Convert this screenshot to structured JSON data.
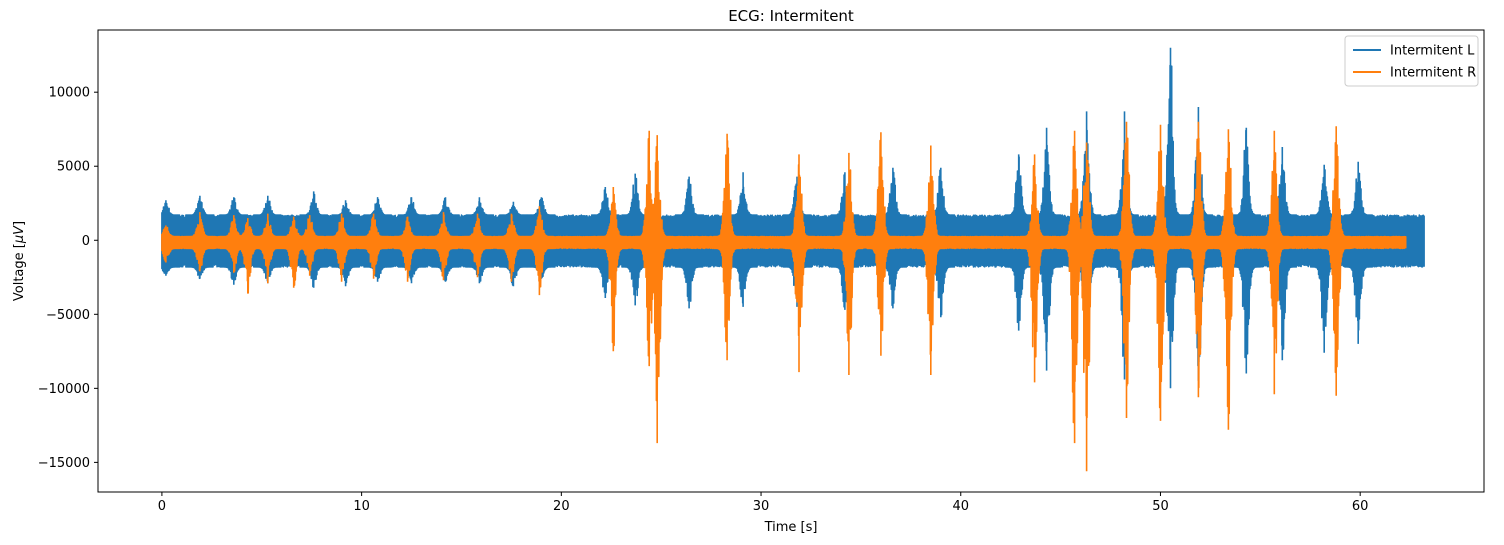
{
  "chart_data": {
    "type": "line",
    "title": "ECG: Intermitent",
    "xlabel": "Time [s]",
    "ylabel_prefix": "Voltage [",
    "ylabel_unit": "μV",
    "ylabel_suffix": "]",
    "xlim": [
      -3.2,
      66.2
    ],
    "ylim": [
      -17000,
      14200
    ],
    "xticks": [
      0,
      10,
      20,
      30,
      40,
      50,
      60
    ],
    "xtick_labels": [
      "0",
      "10",
      "20",
      "30",
      "40",
      "50",
      "60"
    ],
    "yticks": [
      10000,
      5000,
      0,
      -5000,
      -10000,
      -15000
    ],
    "ytick_labels": [
      "10000",
      "5000",
      "0",
      "−5000",
      "−10000",
      "−15000"
    ],
    "legend_position": "top-right",
    "grid": false,
    "series": [
      {
        "name": "Intermitent L",
        "color": "#1f77b4",
        "x_end": 63.2,
        "baseline_upper": 1700,
        "baseline_lower": -1800,
        "bursts": [
          {
            "t": 0.2,
            "max": 2700,
            "min": -2400
          },
          {
            "t": 1.9,
            "max": 3000,
            "min": -2600
          },
          {
            "t": 3.6,
            "max": 2900,
            "min": -3000
          },
          {
            "t": 5.3,
            "max": 3000,
            "min": -2900
          },
          {
            "t": 7.6,
            "max": 3300,
            "min": -3200
          },
          {
            "t": 9.2,
            "max": 2700,
            "min": -3100
          },
          {
            "t": 10.8,
            "max": 2900,
            "min": -2800
          },
          {
            "t": 12.5,
            "max": 2900,
            "min": -2900
          },
          {
            "t": 14.2,
            "max": 2900,
            "min": -2800
          },
          {
            "t": 15.9,
            "max": 2900,
            "min": -2900
          },
          {
            "t": 17.6,
            "max": 2600,
            "min": -3100
          },
          {
            "t": 19.0,
            "max": 2900,
            "min": -2600
          },
          {
            "t": 22.2,
            "max": 3600,
            "min": -3900
          },
          {
            "t": 23.7,
            "max": 4500,
            "min": -4400
          },
          {
            "t": 26.4,
            "max": 4300,
            "min": -4600
          },
          {
            "t": 29.1,
            "max": 4600,
            "min": -4500
          },
          {
            "t": 31.8,
            "max": 4300,
            "min": -4500
          },
          {
            "t": 34.2,
            "max": 4600,
            "min": -4700
          },
          {
            "t": 36.6,
            "max": 4900,
            "min": -4600
          },
          {
            "t": 39.0,
            "max": 4900,
            "min": -5200
          },
          {
            "t": 42.9,
            "max": 5800,
            "min": -6100
          },
          {
            "t": 44.3,
            "max": 7600,
            "min": -8800
          },
          {
            "t": 46.3,
            "max": 8700,
            "min": -9300
          },
          {
            "t": 48.2,
            "max": 8700,
            "min": -9400
          },
          {
            "t": 50.5,
            "max": 13000,
            "min": -10000
          },
          {
            "t": 51.9,
            "max": 9000,
            "min": -9500
          },
          {
            "t": 54.3,
            "max": 7600,
            "min": -9000
          },
          {
            "t": 56.1,
            "max": 6300,
            "min": -8100
          },
          {
            "t": 58.2,
            "max": 5100,
            "min": -7600
          },
          {
            "t": 59.9,
            "max": 5300,
            "min": -7000
          }
        ]
      },
      {
        "name": "Intermitent R",
        "color": "#ff7f0e",
        "x_end": 62.3,
        "baseline_upper": 250,
        "baseline_lower": -550,
        "bursts": [
          {
            "t": 0.2,
            "max": 1000,
            "min": -1500
          },
          {
            "t": 1.9,
            "max": 1900,
            "min": -2100
          },
          {
            "t": 3.6,
            "max": 1700,
            "min": -2200
          },
          {
            "t": 4.3,
            "max": 1500,
            "min": -3600
          },
          {
            "t": 5.3,
            "max": 1800,
            "min": -2900
          },
          {
            "t": 6.6,
            "max": 1600,
            "min": -3200
          },
          {
            "t": 7.4,
            "max": 1700,
            "min": -2400
          },
          {
            "t": 9.0,
            "max": 1800,
            "min": -2800
          },
          {
            "t": 10.6,
            "max": 1800,
            "min": -2600
          },
          {
            "t": 12.3,
            "max": 1600,
            "min": -2800
          },
          {
            "t": 14.1,
            "max": 1900,
            "min": -2700
          },
          {
            "t": 15.8,
            "max": 1800,
            "min": -2500
          },
          {
            "t": 17.5,
            "max": 1800,
            "min": -2800
          },
          {
            "t": 18.9,
            "max": 2300,
            "min": -3700
          },
          {
            "t": 22.6,
            "max": 3600,
            "min": -7500
          },
          {
            "t": 24.4,
            "max": 7400,
            "min": -8500
          },
          {
            "t": 24.8,
            "max": 7100,
            "min": -13700
          },
          {
            "t": 28.3,
            "max": 7200,
            "min": -8100
          },
          {
            "t": 31.9,
            "max": 5800,
            "min": -8900
          },
          {
            "t": 34.4,
            "max": 5900,
            "min": -9100
          },
          {
            "t": 36.0,
            "max": 7300,
            "min": -7800
          },
          {
            "t": 38.5,
            "max": 6400,
            "min": -9100
          },
          {
            "t": 43.7,
            "max": 5800,
            "min": -9600
          },
          {
            "t": 45.7,
            "max": 7400,
            "min": -13700
          },
          {
            "t": 46.3,
            "max": 6600,
            "min": -15600
          },
          {
            "t": 48.3,
            "max": 8000,
            "min": -12000
          },
          {
            "t": 50.0,
            "max": 7800,
            "min": -12200
          },
          {
            "t": 51.9,
            "max": 8000,
            "min": -10600
          },
          {
            "t": 53.4,
            "max": 7500,
            "min": -12800
          },
          {
            "t": 55.7,
            "max": 7400,
            "min": -10400
          },
          {
            "t": 58.8,
            "max": 7700,
            "min": -10500
          }
        ]
      }
    ]
  }
}
